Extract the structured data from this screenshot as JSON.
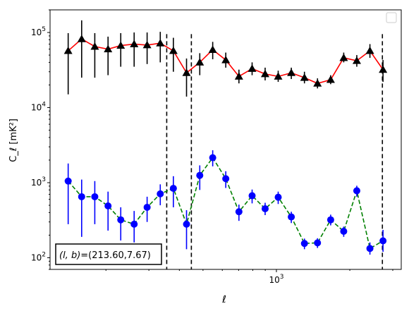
{
  "chart_data": {
    "type": "scatter",
    "xscale": "log",
    "yscale": "log",
    "xlabel": "ℓ",
    "ylabel": "C_ℓ  [mK²]",
    "xlim": [
      118,
      3250
    ],
    "ylim": [
      70,
      200000
    ],
    "x_major_ticks": [
      {
        "value": 1000,
        "base": "10",
        "exp": "3"
      }
    ],
    "y_major_ticks": [
      {
        "value": 100,
        "base": "10",
        "exp": "2"
      },
      {
        "value": 1000,
        "base": "10",
        "exp": "3"
      },
      {
        "value": 10000,
        "base": "10",
        "exp": "4"
      },
      {
        "value": 100000,
        "base": "10",
        "exp": "5"
      }
    ],
    "legend": "top-right (empty box)",
    "annotation": "(l, b)=(213.60,7.67)",
    "annotation_prefix": "(l, b)",
    "annotation_value": "=(213.60,7.67)",
    "vlines": [
      355,
      448,
      2720
    ],
    "series": [
      {
        "marker": "triangle",
        "color": "#000000",
        "line_color": "#ff0000",
        "line_style": "solid",
        "points": [
          {
            "x": 140,
            "y": 57000,
            "lo": 15000,
            "hi": 98000
          },
          {
            "x": 159,
            "y": 82000,
            "lo": 25000,
            "hi": 145000
          },
          {
            "x": 180,
            "y": 65000,
            "lo": 25000,
            "hi": 98000
          },
          {
            "x": 204,
            "y": 60000,
            "lo": 27000,
            "hi": 88000
          },
          {
            "x": 230,
            "y": 67000,
            "lo": 35000,
            "hi": 98000
          },
          {
            "x": 261,
            "y": 70000,
            "lo": 35000,
            "hi": 100000
          },
          {
            "x": 295,
            "y": 68000,
            "lo": 38000,
            "hi": 100000
          },
          {
            "x": 334,
            "y": 72000,
            "lo": 40000,
            "hi": 102000
          },
          {
            "x": 378,
            "y": 57000,
            "lo": 30000,
            "hi": 85000
          },
          {
            "x": 428,
            "y": 29000,
            "lo": 14000,
            "hi": 45000
          },
          {
            "x": 485,
            "y": 40000,
            "lo": 27000,
            "hi": 53000
          },
          {
            "x": 548,
            "y": 59000,
            "lo": 44000,
            "hi": 75000
          },
          {
            "x": 620,
            "y": 43000,
            "lo": 34000,
            "hi": 54000
          },
          {
            "x": 702,
            "y": 26000,
            "lo": 21000,
            "hi": 32000
          },
          {
            "x": 795,
            "y": 33000,
            "lo": 27000,
            "hi": 40000
          },
          {
            "x": 899,
            "y": 28000,
            "lo": 23000,
            "hi": 34000
          },
          {
            "x": 1017,
            "y": 26000,
            "lo": 22000,
            "hi": 31000
          },
          {
            "x": 1151,
            "y": 29000,
            "lo": 24000,
            "hi": 34000
          },
          {
            "x": 1303,
            "y": 25000,
            "lo": 21000,
            "hi": 30000
          },
          {
            "x": 1474,
            "y": 21000,
            "lo": 18000,
            "hi": 24500
          },
          {
            "x": 1669,
            "y": 23500,
            "lo": 20500,
            "hi": 27000
          },
          {
            "x": 1888,
            "y": 46000,
            "lo": 40000,
            "hi": 54000
          },
          {
            "x": 2136,
            "y": 42000,
            "lo": 35000,
            "hi": 50000
          },
          {
            "x": 2418,
            "y": 57000,
            "lo": 46000,
            "hi": 70000
          },
          {
            "x": 2736,
            "y": 32000,
            "lo": 22000,
            "hi": 43000
          }
        ]
      },
      {
        "marker": "circle",
        "color": "#0000ff",
        "line_color": "#008000",
        "line_style": "dashed",
        "points": [
          {
            "x": 140,
            "y": 1050,
            "lo": 280,
            "hi": 1800
          },
          {
            "x": 159,
            "y": 650,
            "lo": 190,
            "hi": 1100
          },
          {
            "x": 180,
            "y": 650,
            "lo": 280,
            "hi": 1050
          },
          {
            "x": 204,
            "y": 490,
            "lo": 230,
            "hi": 760
          },
          {
            "x": 230,
            "y": 320,
            "lo": 170,
            "hi": 470
          },
          {
            "x": 261,
            "y": 280,
            "lo": 160,
            "hi": 420
          },
          {
            "x": 295,
            "y": 470,
            "lo": 300,
            "hi": 650
          },
          {
            "x": 334,
            "y": 710,
            "lo": 500,
            "hi": 950
          },
          {
            "x": 378,
            "y": 840,
            "lo": 470,
            "hi": 1220
          },
          {
            "x": 428,
            "y": 280,
            "lo": 130,
            "hi": 430
          },
          {
            "x": 485,
            "y": 1250,
            "lo": 800,
            "hi": 1700
          },
          {
            "x": 548,
            "y": 2150,
            "lo": 1650,
            "hi": 2700
          },
          {
            "x": 620,
            "y": 1130,
            "lo": 850,
            "hi": 1420
          },
          {
            "x": 702,
            "y": 410,
            "lo": 310,
            "hi": 510
          },
          {
            "x": 795,
            "y": 670,
            "lo": 530,
            "hi": 810
          },
          {
            "x": 899,
            "y": 450,
            "lo": 370,
            "hi": 540
          },
          {
            "x": 1017,
            "y": 640,
            "lo": 520,
            "hi": 760
          },
          {
            "x": 1151,
            "y": 350,
            "lo": 290,
            "hi": 410
          },
          {
            "x": 1303,
            "y": 155,
            "lo": 130,
            "hi": 180
          },
          {
            "x": 1474,
            "y": 158,
            "lo": 135,
            "hi": 182
          },
          {
            "x": 1669,
            "y": 320,
            "lo": 270,
            "hi": 375
          },
          {
            "x": 1888,
            "y": 225,
            "lo": 190,
            "hi": 260
          },
          {
            "x": 2136,
            "y": 780,
            "lo": 650,
            "hi": 910
          },
          {
            "x": 2418,
            "y": 133,
            "lo": 110,
            "hi": 160
          },
          {
            "x": 2736,
            "y": 168,
            "lo": 120,
            "hi": 235
          }
        ]
      }
    ]
  }
}
